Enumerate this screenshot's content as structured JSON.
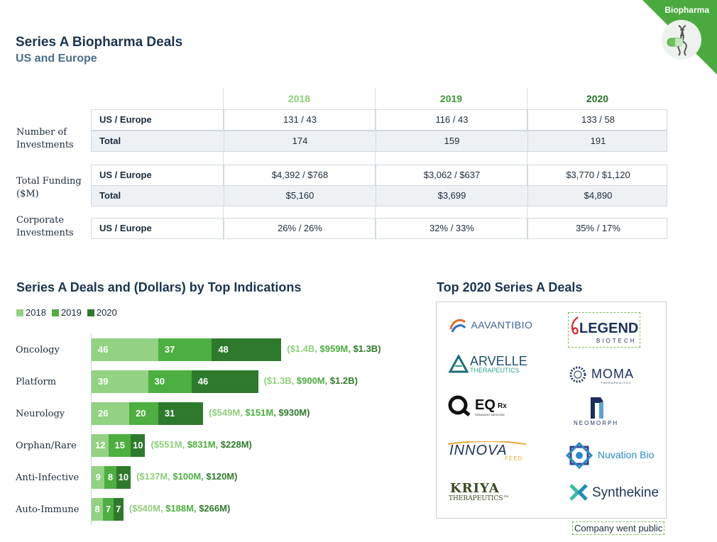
{
  "header": {
    "title": "Series A Biopharma Deals",
    "subtitle": "US and Europe",
    "badge": "Biopharma"
  },
  "colors": {
    "y2018": "#93d183",
    "y2019": "#4caf3f",
    "y2020": "#2e7a2c",
    "navy": "#1b3552"
  },
  "table": {
    "years": [
      "2018",
      "2019",
      "2020"
    ],
    "groups": [
      {
        "label": "Number of Investments",
        "rows": [
          {
            "label": "US / Europe",
            "values": [
              "131 / 43",
              "116 / 43",
              "133 / 58"
            ]
          },
          {
            "label": "Total",
            "values": [
              "174",
              "159",
              "191"
            ]
          }
        ]
      },
      {
        "label": "Total Funding ($M)",
        "rows": [
          {
            "label": "US / Europe",
            "values": [
              "$4,392 / $768",
              "$3,062 / $637",
              "$3,770 / $1,120"
            ]
          },
          {
            "label": "Total",
            "values": [
              "$5,160",
              "$3,699",
              "$4,890"
            ]
          }
        ]
      },
      {
        "label": "Corporate Investments",
        "rows": [
          {
            "label": "US / Europe",
            "values": [
              "26% / 26%",
              "32% / 33%",
              "35% / 17%"
            ]
          }
        ]
      }
    ]
  },
  "chart_data": {
    "type": "bar",
    "title": "Series A Deals and (Dollars) by Top Indications",
    "stacked": true,
    "orientation": "horizontal",
    "categories": [
      "Oncology",
      "Platform",
      "Neurology",
      "Orphan/Rare",
      "Anti-Infective",
      "Auto-Immune"
    ],
    "series": [
      {
        "name": "2018",
        "values": [
          46,
          39,
          26,
          12,
          9,
          8
        ]
      },
      {
        "name": "2019",
        "values": [
          37,
          30,
          20,
          15,
          8,
          7
        ]
      },
      {
        "name": "2020",
        "values": [
          48,
          46,
          31,
          10,
          10,
          7
        ]
      }
    ],
    "dollars": [
      [
        "$1.4B",
        "$959M",
        "$1.3B"
      ],
      [
        "$1.3B",
        "$900M",
        "$1.2B"
      ],
      [
        "$549M",
        "$151M",
        "$930M"
      ],
      [
        "$551M",
        "$831M",
        "$228M"
      ],
      [
        "$137M",
        "$100M",
        "$120M"
      ],
      [
        "$540M",
        "$188M",
        "$266M"
      ]
    ],
    "legend_position": "top-left"
  },
  "deals": {
    "title": "Top 2020 Series A Deals",
    "public_note": "Company went public",
    "logos": {
      "aavanti": "AAVANTIBIO",
      "legend_main": "LEGEND",
      "legend_sub": "BIOTECH",
      "arvelle_main": "ARVELLE",
      "arvelle_sub": "THERAPEUTICS",
      "moma": "MOMA",
      "moma_sub": "THERAPEUTICS",
      "eqrx": "EQ",
      "eqrx_rx": "Rx",
      "eqrx_sub": "REMAKING MEDICINE",
      "neomorph": "NEOMORPH",
      "innova_main": "INNOVA",
      "innova_sub": "FEED",
      "nuvation": "Nuvation Bio",
      "kriya_main": "KRIYA",
      "kriya_sub": "THERAPEUTICS™",
      "synthekine": "Synthekine"
    }
  }
}
